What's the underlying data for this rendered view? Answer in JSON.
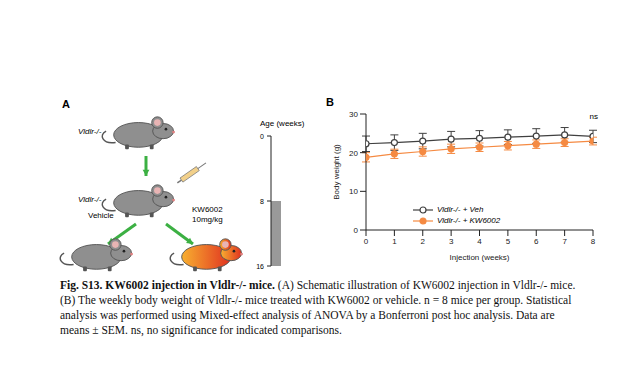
{
  "chart_data": {
    "type": "line",
    "panel": "B",
    "x_label": "Injection (weeks)",
    "y_label": "Body weight (g)",
    "x": [
      0,
      1,
      2,
      3,
      4,
      5,
      6,
      7,
      8
    ],
    "series": [
      {
        "name": "Vldlr-/- + Veh",
        "color": "#404040",
        "marker": "open_circle",
        "values": [
          22.3,
          22.6,
          23.0,
          23.5,
          23.7,
          24.0,
          24.3,
          24.6,
          24.2
        ],
        "errors": [
          2.0,
          2.0,
          2.0,
          2.0,
          2.0,
          1.9,
          1.9,
          1.9,
          1.6
        ]
      },
      {
        "name": "Vldlr-/- + KW6002",
        "color": "#f58a42",
        "marker": "circle",
        "values": [
          18.8,
          19.7,
          20.3,
          21.0,
          21.4,
          21.8,
          22.2,
          22.6,
          23.0
        ],
        "errors": [
          1.2,
          1.2,
          1.2,
          1.2,
          1.1,
          1.1,
          1.1,
          1.0,
          1.0
        ]
      }
    ],
    "xlim": [
      0,
      8
    ],
    "xticks": [
      0,
      1,
      2,
      3,
      4,
      5,
      6,
      7,
      8
    ],
    "ylim": [
      0,
      30
    ],
    "yticks": [
      0,
      10,
      20,
      30
    ],
    "legend": "lower right",
    "annotations": [
      "ns"
    ]
  },
  "panel_a": {
    "panel": "A",
    "mouse_label": "Vldlr-/-",
    "vehicle_label": "Vehicle",
    "drug_label": "KW6002",
    "dose_label": "10mg/kg",
    "age_title": "Age (weeks)",
    "age_range": [
      0,
      16
    ],
    "age_ticks": [
      0,
      8,
      16
    ],
    "treatment_weeks": [
      8,
      16
    ]
  },
  "caption": {
    "title": "Fig. S13. KW6002 injection in Vldlr-/- mice.",
    "text": "(A) Schematic illustration of KW6002 injection in Vldlr-/- mice. (B) The weekly body weight of Vldlr-/- mice treated with KW6002 or vehicle. n = 8 mice per group. Statistical analysis was performed using Mixed-effect analysis of ANOVA by a Bonferroni post hoc analysis. Data are means ± SEM. ns, no significance for indicated comparisons."
  }
}
